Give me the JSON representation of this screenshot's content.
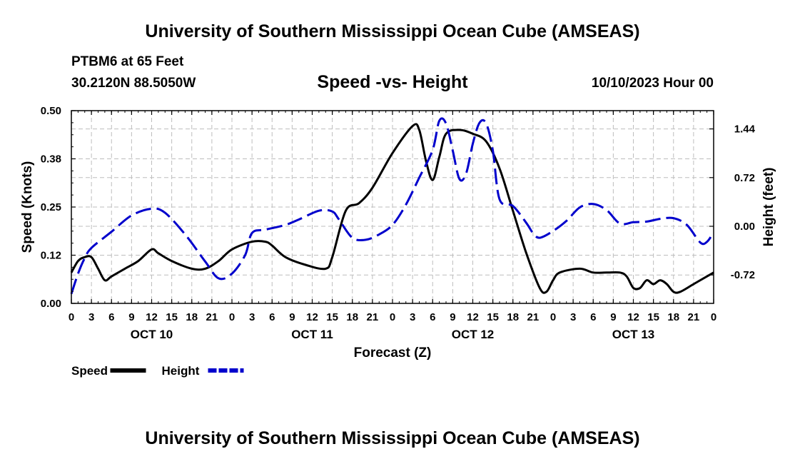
{
  "header": {
    "title": "University of Southern Mississippi Ocean Cube (AMSEAS)",
    "station": "PTBM6 at 65 Feet",
    "coords": "30.2120N  88.5050W",
    "datetime": "10/10/2023 Hour 00"
  },
  "footer": {
    "title": "University of Southern Mississippi Ocean Cube (AMSEAS)"
  },
  "chart_data": {
    "type": "line",
    "title": "Speed -vs- Height",
    "xlabel": "Forecast (Z)",
    "ylabel_left": "Speed (Knots)",
    "ylabel_right": "Height (feet)",
    "x_hours_range": [
      0,
      96
    ],
    "x_tick_labels": [
      "0",
      "3",
      "6",
      "9",
      "12",
      "15",
      "18",
      "21",
      "0",
      "3",
      "6",
      "9",
      "12",
      "15",
      "18",
      "21",
      "0",
      "3",
      "6",
      "9",
      "12",
      "15",
      "18",
      "21",
      "0",
      "3",
      "6",
      "9",
      "12",
      "15",
      "18",
      "21",
      "0"
    ],
    "day_labels": [
      {
        "hour": 12,
        "label": "OCT 10"
      },
      {
        "hour": 36,
        "label": "OCT 11"
      },
      {
        "hour": 60,
        "label": "OCT 12"
      },
      {
        "hour": 84,
        "label": "OCT 13"
      }
    ],
    "ylim_left": [
      0,
      0.5
    ],
    "yticks_left": [
      "0.00",
      "0.12",
      "0.25",
      "0.38",
      "0.50"
    ],
    "ylim_right": [
      -1.14,
      1.71
    ],
    "yticks_right": [
      {
        "value": -0.72,
        "label": "-0.72"
      },
      {
        "value": 0.0,
        "label": "0.00"
      },
      {
        "value": 0.72,
        "label": "0.72"
      },
      {
        "value": 1.44,
        "label": "1.44"
      }
    ],
    "grid": true,
    "series": [
      {
        "name": "Speed",
        "axis": "left",
        "color": "#000000",
        "style": "solid",
        "points": [
          [
            0,
            0.08
          ],
          [
            1,
            0.11
          ],
          [
            2,
            0.12
          ],
          [
            3,
            0.12
          ],
          [
            4,
            0.09
          ],
          [
            5,
            0.06
          ],
          [
            6,
            0.07
          ],
          [
            8,
            0.09
          ],
          [
            10,
            0.11
          ],
          [
            12,
            0.14
          ],
          [
            13,
            0.13
          ],
          [
            15,
            0.11
          ],
          [
            18,
            0.09
          ],
          [
            20,
            0.09
          ],
          [
            22,
            0.11
          ],
          [
            24,
            0.14
          ],
          [
            27,
            0.16
          ],
          [
            29,
            0.16
          ],
          [
            30,
            0.15
          ],
          [
            32,
            0.12
          ],
          [
            35,
            0.1
          ],
          [
            38,
            0.09
          ],
          [
            39,
            0.12
          ],
          [
            41,
            0.24
          ],
          [
            43,
            0.26
          ],
          [
            45,
            0.3
          ],
          [
            48,
            0.39
          ],
          [
            51,
            0.46
          ],
          [
            52,
            0.45
          ],
          [
            53,
            0.37
          ],
          [
            54,
            0.32
          ],
          [
            55,
            0.38
          ],
          [
            56,
            0.44
          ],
          [
            58,
            0.45
          ],
          [
            60,
            0.44
          ],
          [
            62,
            0.42
          ],
          [
            64,
            0.35
          ],
          [
            66,
            0.24
          ],
          [
            68,
            0.13
          ],
          [
            70,
            0.04
          ],
          [
            71,
            0.03
          ],
          [
            72,
            0.06
          ],
          [
            73,
            0.08
          ],
          [
            76,
            0.09
          ],
          [
            78,
            0.08
          ],
          [
            80,
            0.08
          ],
          [
            82,
            0.08
          ],
          [
            83,
            0.07
          ],
          [
            84,
            0.04
          ],
          [
            85,
            0.04
          ],
          [
            86,
            0.06
          ],
          [
            87,
            0.05
          ],
          [
            88,
            0.06
          ],
          [
            89,
            0.05
          ],
          [
            90,
            0.03
          ],
          [
            91,
            0.03
          ],
          [
            93,
            0.05
          ],
          [
            95,
            0.07
          ],
          [
            96,
            0.08
          ]
        ]
      },
      {
        "name": "Height",
        "axis": "right",
        "color": "#0000cc",
        "style": "dashed",
        "points": [
          [
            0,
            -1.0
          ],
          [
            1,
            -0.7
          ],
          [
            2,
            -0.47
          ],
          [
            3,
            -0.32
          ],
          [
            6,
            -0.08
          ],
          [
            9,
            0.16
          ],
          [
            12,
            0.26
          ],
          [
            14,
            0.2
          ],
          [
            17,
            -0.12
          ],
          [
            20,
            -0.52
          ],
          [
            22,
            -0.77
          ],
          [
            24,
            -0.7
          ],
          [
            26,
            -0.42
          ],
          [
            27,
            -0.1
          ],
          [
            29,
            -0.05
          ],
          [
            32,
            0.02
          ],
          [
            34,
            0.1
          ],
          [
            37,
            0.23
          ],
          [
            39,
            0.22
          ],
          [
            40,
            0.1
          ],
          [
            42,
            -0.17
          ],
          [
            44,
            -0.2
          ],
          [
            46,
            -0.12
          ],
          [
            48,
            0.02
          ],
          [
            50,
            0.32
          ],
          [
            52,
            0.72
          ],
          [
            54,
            1.13
          ],
          [
            55,
            1.56
          ],
          [
            56,
            1.52
          ],
          [
            57,
            1.12
          ],
          [
            58,
            0.7
          ],
          [
            59,
            0.78
          ],
          [
            60,
            1.22
          ],
          [
            61,
            1.53
          ],
          [
            62,
            1.52
          ],
          [
            63,
            1.12
          ],
          [
            64,
            0.4
          ],
          [
            66,
            0.3
          ],
          [
            68,
            0.05
          ],
          [
            69,
            -0.1
          ],
          [
            70,
            -0.17
          ],
          [
            72,
            -0.07
          ],
          [
            74,
            0.08
          ],
          [
            76,
            0.28
          ],
          [
            78,
            0.33
          ],
          [
            80,
            0.24
          ],
          [
            82,
            0.04
          ],
          [
            84,
            0.06
          ],
          [
            86,
            0.07
          ],
          [
            88,
            0.11
          ],
          [
            90,
            0.12
          ],
          [
            92,
            0.02
          ],
          [
            94,
            -0.24
          ],
          [
            95,
            -0.23
          ],
          [
            96,
            -0.09
          ]
        ]
      }
    ],
    "legend": [
      {
        "label": "Speed",
        "color": "#000000",
        "style": "solid"
      },
      {
        "label": "Height",
        "color": "#0000cc",
        "style": "dashed"
      }
    ]
  }
}
